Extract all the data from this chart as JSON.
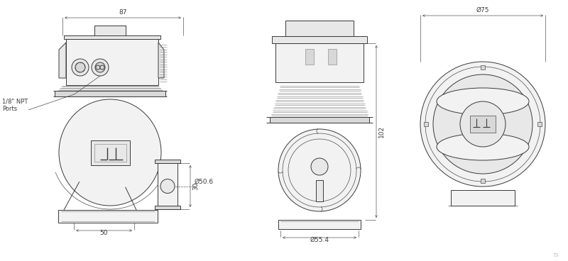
{
  "bg_color": "#ffffff",
  "lc": "#3a3a3a",
  "dc": "#3a3a3a",
  "dlc": "#555555",
  "mg": "#888888",
  "lg": "#bbbbbb",
  "fill_light": "#f2f2f2",
  "fill_mid": "#e8e8e8",
  "fill_dark": "#d8d8d8",
  "lw_main": 0.7,
  "lw_thin": 0.45,
  "lw_dim": 0.5,
  "fs_dim": 6.5,
  "fs_label": 6.0,
  "annotations": {
    "dim_87": "87",
    "dim_50": "50",
    "dim_30": "30",
    "dim_50_6": "Ø50.6",
    "dim_55_4": "Ø55.4",
    "dim_102": "102",
    "dim_75": "Ø75",
    "npt_line1": "1/8\" NPT",
    "npt_line2": "Ports"
  }
}
